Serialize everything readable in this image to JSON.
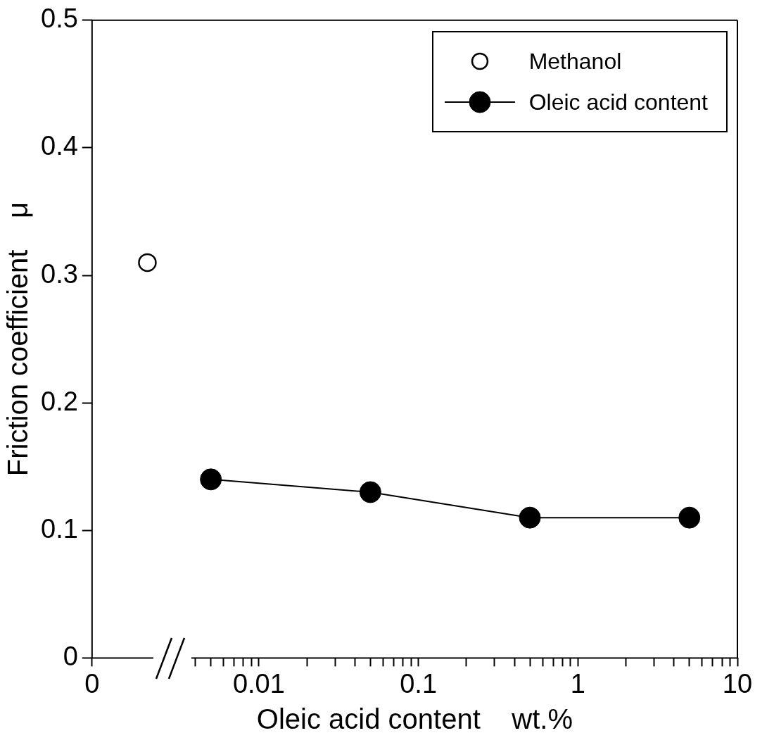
{
  "chart_data": {
    "type": "line",
    "xlabel": "Oleic acid content    wt.%",
    "ylabel": "Friction coefficient    μ",
    "log": "x",
    "xlim": [
      0.0009,
      10
    ],
    "xticks": [
      {
        "value": 0.0009,
        "label": "0"
      },
      {
        "value": 0.004,
        "label": null
      },
      {
        "value": 0.005,
        "label": null
      },
      {
        "value": 0.006,
        "label": null
      },
      {
        "value": 0.007,
        "label": null
      },
      {
        "value": 0.008,
        "label": null
      },
      {
        "value": 0.009,
        "label": null
      },
      0.01,
      {
        "value": 0.02,
        "label": null
      },
      {
        "value": 0.03,
        "label": null
      },
      {
        "value": 0.04,
        "label": null
      },
      {
        "value": 0.05,
        "label": null
      },
      {
        "value": 0.06,
        "label": null
      },
      {
        "value": 0.07,
        "label": null
      },
      {
        "value": 0.08,
        "label": null
      },
      {
        "value": 0.09,
        "label": null
      },
      0.1,
      {
        "value": 0.2,
        "label": null
      },
      {
        "value": 0.3,
        "label": null
      },
      {
        "value": 0.4,
        "label": null
      },
      {
        "value": 0.5,
        "label": null
      },
      {
        "value": 0.6,
        "label": null
      },
      {
        "value": 0.7,
        "label": null
      },
      {
        "value": 0.8,
        "label": null
      },
      {
        "value": 0.9,
        "label": null
      },
      1,
      {
        "value": 2,
        "label": null
      },
      {
        "value": 3,
        "label": null
      },
      {
        "value": 4,
        "label": null
      },
      {
        "value": 5,
        "label": null
      },
      {
        "value": 6,
        "label": null
      },
      {
        "value": 7,
        "label": null
      },
      {
        "value": 8,
        "label": null
      },
      {
        "value": 9,
        "label": null
      },
      10
    ],
    "ylim": [
      0,
      0.5
    ],
    "yticks": [
      0,
      0.1,
      0.2,
      0.3,
      0.4,
      0.5
    ],
    "grid": false,
    "legend": "top right",
    "marker": "circle",
    "series": [
      {
        "name": "Methanol",
        "type": "scatter",
        "color": "#000000",
        "x": [
          0.002
        ],
        "values": [
          0.31
        ]
      },
      {
        "name": "Oleic acid content",
        "type": "line",
        "color": "#000000",
        "x": [
          0.005,
          0.05,
          0.5,
          5
        ],
        "values": [
          0.14,
          0.13,
          0.11,
          0.11
        ]
      }
    ]
  }
}
